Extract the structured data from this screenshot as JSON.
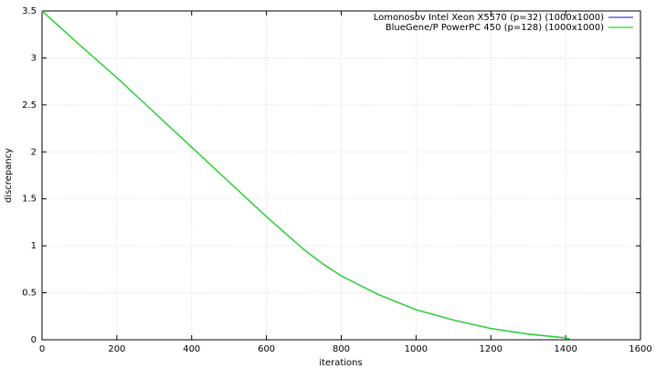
{
  "chart_data": {
    "type": "line",
    "x_label": "iterations",
    "y_label": "discrepancy",
    "x": [
      0,
      100,
      200,
      300,
      400,
      500,
      600,
      700,
      750,
      800,
      900,
      1000,
      1100,
      1200,
      1300,
      1400,
      1410
    ],
    "series": [
      {
        "name": "Lomonosov Intel Xeon X5570 (p=32) (1000x1000)",
        "color": "#4b3fd6",
        "values": [
          3.5,
          3.14,
          2.79,
          2.42,
          2.05,
          1.68,
          1.31,
          0.96,
          0.81,
          0.68,
          0.48,
          0.32,
          0.21,
          0.12,
          0.06,
          0.02,
          0.01
        ]
      },
      {
        "name": "BlueGene/P PowerPC 450 (p=128) (1000x1000)",
        "color": "#22dd22",
        "values": [
          3.5,
          3.14,
          2.79,
          2.42,
          2.05,
          1.68,
          1.31,
          0.96,
          0.81,
          0.68,
          0.48,
          0.32,
          0.21,
          0.12,
          0.06,
          0.02,
          0.01
        ]
      }
    ],
    "xlim": [
      0,
      1600
    ],
    "xticks": [
      0,
      200,
      400,
      600,
      800,
      1000,
      1200,
      1400,
      1600
    ],
    "ylim": [
      0,
      3.5
    ],
    "yticks": [
      0,
      0.5,
      1,
      1.5,
      2,
      2.5,
      3,
      3.5
    ],
    "grid": true,
    "legend": "top-right"
  }
}
